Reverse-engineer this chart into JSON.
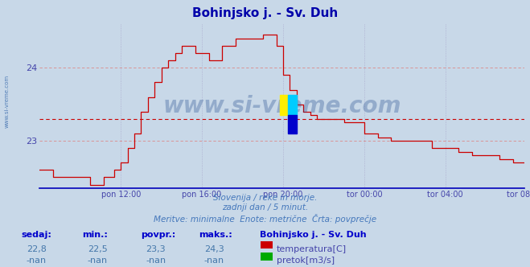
{
  "title": "Bohinjsko j. - Sv. Duh",
  "bg_color": "#c8d8e8",
  "plot_bg_color": "#c8d8e8",
  "grid_color_h": "#dd8888",
  "grid_color_v": "#aaaacc",
  "line_color": "#cc0000",
  "avg_line_color": "#cc0000",
  "avg_value": 23.3,
  "y_min": 22.35,
  "y_max": 24.6,
  "y_ticks": [
    23,
    24
  ],
  "x_tick_positions": [
    48,
    96,
    144,
    192,
    240,
    287
  ],
  "x_tick_labels": [
    "pon 12:00",
    "pon 16:00",
    "pon 20:00",
    "tor 00:00",
    "tor 04:00",
    "tor 08:00"
  ],
  "subtitle_lines": [
    "Slovenija / reke in morje.",
    "zadnji dan / 5 minut.",
    "Meritve: minimalne  Enote: metrične  Črta: povprečje"
  ],
  "footer_labels": [
    "sedaj:",
    "min.:",
    "povpr.:",
    "maks.:"
  ],
  "footer_values_temp": [
    "22,8",
    "22,5",
    "23,3",
    "24,3"
  ],
  "footer_values_pretok": [
    "-nan",
    "-nan",
    "-nan",
    "-nan"
  ],
  "station_name": "Bohinjsko j. - Sv. Duh",
  "legend_temp": "temperatura[C]",
  "legend_pretok": "pretok[m3/s]",
  "watermark": "www.si-vreme.com",
  "axis_color": "#4444aa",
  "text_color": "#4444aa",
  "footer_header_color": "#0000cc",
  "footer_value_color": "#4477aa",
  "subtitle_color": "#4477bb"
}
